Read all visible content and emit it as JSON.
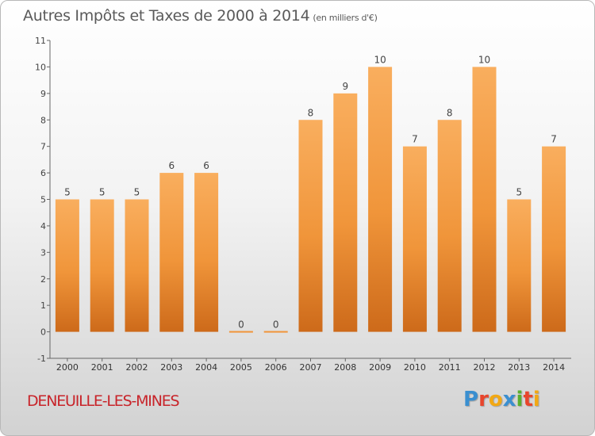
{
  "header": {
    "title": "Autres Impôts et Taxes de 2000 à 2014",
    "unit": "(en milliers d'€)"
  },
  "footer": {
    "commune": "DENEUILLE-LES-MINES",
    "logo_letters": [
      "P",
      "r",
      "o",
      "x",
      "i",
      "t",
      "i"
    ],
    "logo_colors": [
      "#3a8fd0",
      "#e8452c",
      "#f2a814",
      "#3a8fd0",
      "#5ab02e",
      "#e8452c",
      "#f2a814"
    ]
  },
  "chart_data": {
    "type": "bar",
    "categories": [
      "2000",
      "2001",
      "2002",
      "2003",
      "2004",
      "2005",
      "2006",
      "2007",
      "2008",
      "2009",
      "2010",
      "2011",
      "2012",
      "2013",
      "2014"
    ],
    "values": [
      5,
      5,
      5,
      6,
      6,
      0,
      0,
      8,
      9,
      10,
      7,
      8,
      10,
      5,
      7
    ],
    "data_labels": [
      "5",
      "5",
      "5",
      "6",
      "6",
      "0",
      "0",
      "8",
      "9",
      "10",
      "7",
      "8",
      "10",
      "5",
      "7"
    ],
    "y_ticks": [
      "-1",
      "0",
      "1",
      "2",
      "3",
      "4",
      "5",
      "6",
      "7",
      "8",
      "9",
      "10",
      "11"
    ],
    "ylim": [
      -1,
      11
    ],
    "grid": false,
    "bar_color": "#f0953a",
    "bar_color_light": "#f9ae5e",
    "bar_color_dark": "#cd6a1a"
  }
}
